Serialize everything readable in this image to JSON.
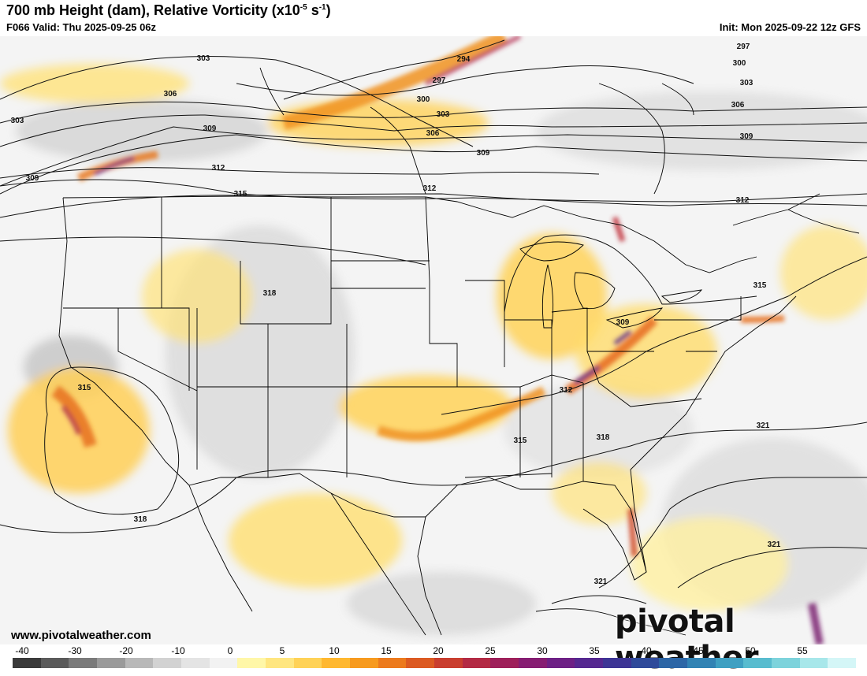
{
  "header": {
    "title_main": "700 mb Height (dam), Relative Vorticity (x10",
    "title_exp": "-5",
    "title_mid": " s",
    "title_exp2": "-1",
    "title_end": ")",
    "valid": "F066 Valid: Thu 2025-09-25 06z",
    "init": "Init: Mon 2025-09-22 12z GFS"
  },
  "footer": {
    "website": "www.pivotalweather.com",
    "brand": "pivotal weather"
  },
  "contour_labels": [
    {
      "text": "303"
    },
    {
      "text": "294"
    },
    {
      "text": "297"
    },
    {
      "text": "300"
    },
    {
      "text": "303"
    },
    {
      "text": "306"
    },
    {
      "text": "306"
    },
    {
      "text": "303"
    },
    {
      "text": "309"
    },
    {
      "text": "312"
    },
    {
      "text": "309"
    },
    {
      "text": "315"
    },
    {
      "text": "312"
    },
    {
      "text": "309"
    },
    {
      "text": "297"
    },
    {
      "text": "300"
    },
    {
      "text": "303"
    },
    {
      "text": "306"
    },
    {
      "text": "309"
    },
    {
      "text": "312"
    },
    {
      "text": "318"
    },
    {
      "text": "315"
    },
    {
      "text": "309"
    },
    {
      "text": "312"
    },
    {
      "text": "315"
    },
    {
      "text": "318"
    },
    {
      "text": "315"
    },
    {
      "text": "321"
    },
    {
      "text": "318"
    },
    {
      "text": "321"
    },
    {
      "text": "321"
    }
  ],
  "colorbar": {
    "ticks": [
      "-40",
      "-30",
      "-20",
      "-10",
      "0",
      "5",
      "10",
      "15",
      "20",
      "25",
      "30",
      "35",
      "40",
      "45",
      "50",
      "55"
    ],
    "colors": [
      "#3a3a3a",
      "#5a5a5a",
      "#7a7a7a",
      "#9a9a9a",
      "#b8b8b8",
      "#d2d2d2",
      "#e4e4e4",
      "#f2f2f2",
      "#fff7a8",
      "#ffe680",
      "#ffd257",
      "#ffb830",
      "#f79a1e",
      "#ec7a1d",
      "#dc5a22",
      "#c93e2f",
      "#b32a44",
      "#9e1f5a",
      "#861d72",
      "#6d2085",
      "#552890",
      "#3d3595",
      "#2f4a9a",
      "#2d66a6",
      "#3283b4",
      "#3fa0c2",
      "#58bccf",
      "#7dd3dc",
      "#a7e7ea",
      "#d4f6f7"
    ]
  }
}
